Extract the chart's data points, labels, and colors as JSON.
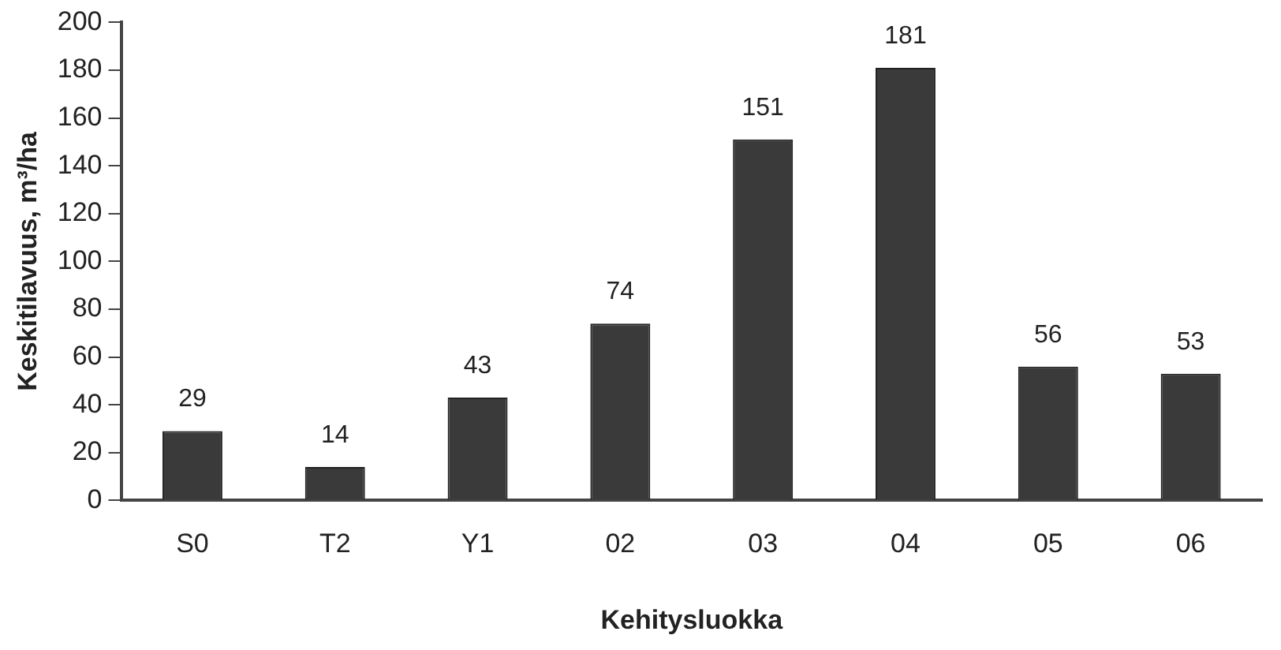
{
  "chart_data": {
    "type": "bar",
    "xlabel": "Kehitysluokka",
    "ylabel": "Keskitilavuus, m³/ha",
    "categories": [
      "S0",
      "T2",
      "Y1",
      "02",
      "03",
      "04",
      "05",
      "06"
    ],
    "values": [
      29,
      14,
      43,
      74,
      151,
      181,
      56,
      53
    ],
    "color": "#3a3a3a",
    "ylim": [
      0,
      200
    ],
    "yticks": [
      0,
      20,
      40,
      60,
      80,
      100,
      120,
      140,
      160,
      180,
      200
    ],
    "grid": false,
    "data_labels": true
  }
}
